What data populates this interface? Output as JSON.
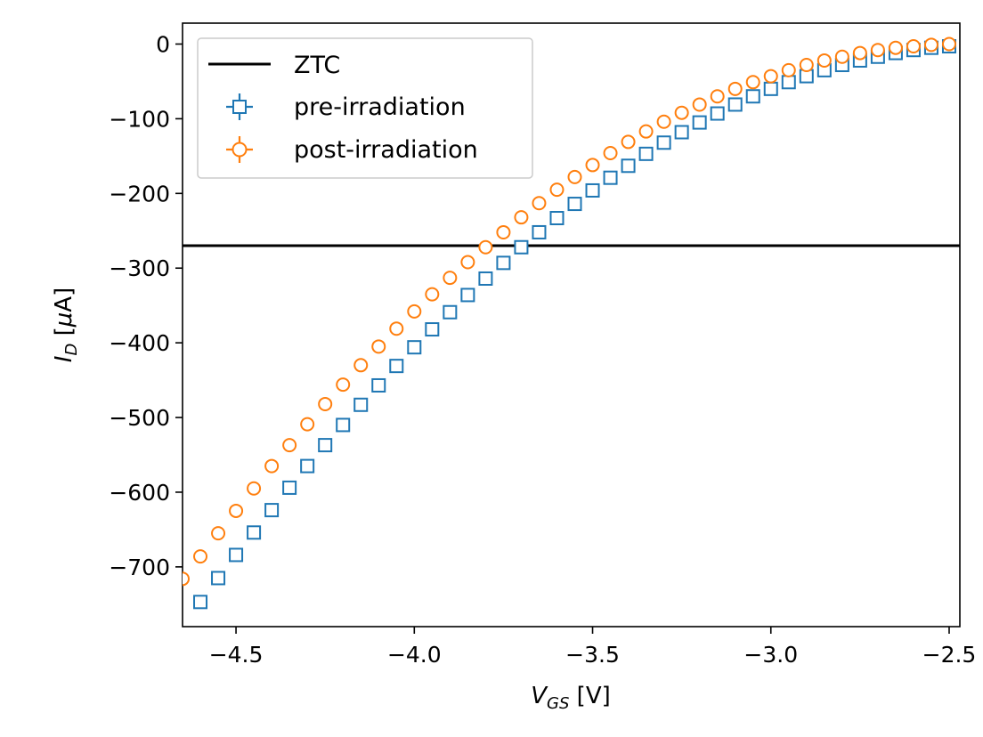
{
  "chart_data": {
    "type": "scatter",
    "xlabel": {
      "main": "V",
      "sub": "GS",
      "unit": " [V]"
    },
    "ylabel": {
      "main": "I",
      "sub": "D",
      "unit_open": " [",
      "mu": "μ",
      "unit_close": "A]"
    },
    "xlim": [
      -4.65,
      -2.47
    ],
    "ylim": [
      -780,
      28
    ],
    "xticks": [
      -4.5,
      -4.0,
      -3.5,
      -3.0,
      -2.5
    ],
    "xtick_labels": [
      "−4.5",
      "−4.0",
      "−3.5",
      "−3.0",
      "−2.5"
    ],
    "yticks": [
      0,
      -100,
      -200,
      -300,
      -400,
      -500,
      -600,
      -700
    ],
    "ytick_labels": [
      "0",
      "−100",
      "−200",
      "−300",
      "−400",
      "−500",
      "−600",
      "−700"
    ],
    "ztc": {
      "name": "ZTC",
      "y": -270,
      "color": "#000000"
    },
    "legend_position": "top-left",
    "series": [
      {
        "name": "pre-irradiation",
        "marker": "square",
        "color": "#1f77b4",
        "x": [
          -4.6,
          -4.55,
          -4.5,
          -4.45,
          -4.4,
          -4.35,
          -4.3,
          -4.25,
          -4.2,
          -4.15,
          -4.1,
          -4.05,
          -4.0,
          -3.95,
          -3.9,
          -3.85,
          -3.8,
          -3.75,
          -3.7,
          -3.65,
          -3.6,
          -3.55,
          -3.5,
          -3.45,
          -3.4,
          -3.35,
          -3.3,
          -3.25,
          -3.2,
          -3.15,
          -3.1,
          -3.05,
          -3.0,
          -2.95,
          -2.9,
          -2.85,
          -2.8,
          -2.75,
          -2.7,
          -2.65,
          -2.6,
          -2.55,
          -2.5
        ],
        "values": [
          -747,
          -715,
          -684,
          -654,
          -624,
          -594,
          -565,
          -537,
          -510,
          -483,
          -457,
          -431,
          -406,
          -382,
          -359,
          -336,
          -314,
          -293,
          -272,
          -252,
          -233,
          -214,
          -196,
          -179,
          -163,
          -147,
          -132,
          -118,
          -105,
          -93,
          -81,
          -70,
          -60,
          -51,
          -43,
          -35,
          -28,
          -22,
          -17,
          -12,
          -8,
          -5,
          -3
        ]
      },
      {
        "name": "post-irradiation",
        "marker": "circle",
        "color": "#ff7f0e",
        "x": [
          -4.65,
          -4.6,
          -4.55,
          -4.5,
          -4.45,
          -4.4,
          -4.35,
          -4.3,
          -4.25,
          -4.2,
          -4.15,
          -4.1,
          -4.05,
          -4.0,
          -3.95,
          -3.9,
          -3.85,
          -3.8,
          -3.75,
          -3.7,
          -3.65,
          -3.6,
          -3.55,
          -3.5,
          -3.45,
          -3.4,
          -3.35,
          -3.3,
          -3.25,
          -3.2,
          -3.15,
          -3.1,
          -3.05,
          -3.0,
          -2.95,
          -2.9,
          -2.85,
          -2.8,
          -2.75,
          -2.7,
          -2.65,
          -2.6,
          -2.55,
          -2.5
        ],
        "values": [
          -716,
          -686,
          -655,
          -625,
          -595,
          -565,
          -537,
          -509,
          -482,
          -456,
          -430,
          -405,
          -381,
          -358,
          -335,
          -313,
          -292,
          -272,
          -252,
          -232,
          -213,
          -195,
          -178,
          -162,
          -146,
          -131,
          -117,
          -104,
          -92,
          -81,
          -70,
          -60,
          -51,
          -43,
          -35,
          -28,
          -22,
          -17,
          -12,
          -8,
          -5,
          -3,
          -1,
          0
        ]
      }
    ]
  }
}
